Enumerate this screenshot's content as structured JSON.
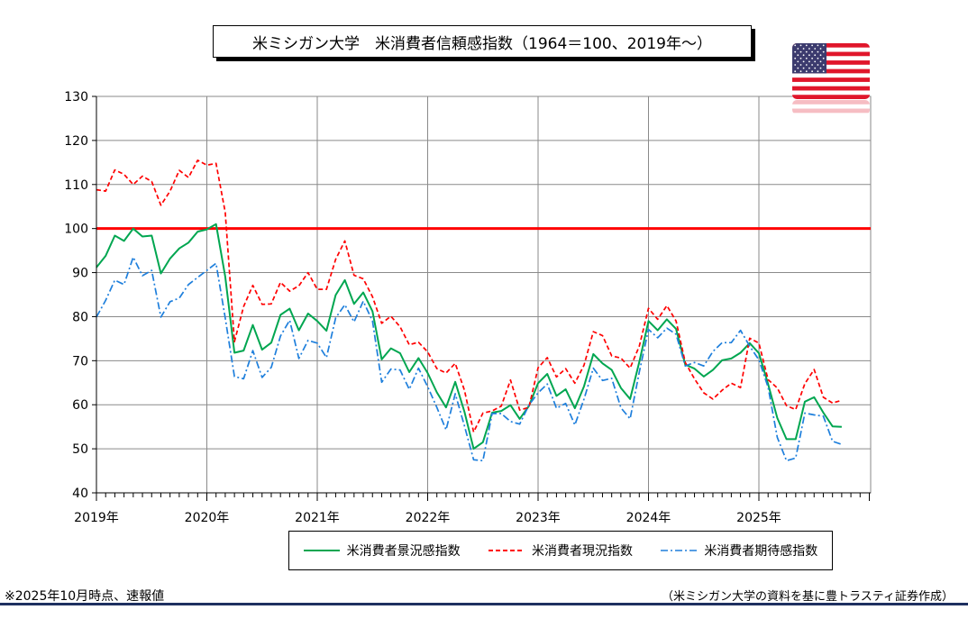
{
  "title": "米ミシガン大学　米消費者信頼感指数（1964＝100、2019年～）",
  "footnote_left": "※2025年10月時点、速報値",
  "footnote_right": "（米ミシガン大学の資料を基に豊トラスティ証券作成）",
  "flag_icon": "us-flag-icon",
  "chart_data": {
    "type": "line",
    "title": "米ミシガン大学　米消費者信頼感指数（1964＝100、2019年～）",
    "xlabel": "",
    "ylabel": "",
    "ylim": [
      40,
      130
    ],
    "yticks": [
      40,
      50,
      60,
      70,
      80,
      90,
      100,
      110,
      120,
      130
    ],
    "xtick_labels": [
      "2019年",
      "2020年",
      "2021年",
      "2022年",
      "2023年",
      "2024年",
      "2025年"
    ],
    "x_start": "2019-01",
    "grid": true,
    "legend_position": "bottom",
    "reference_line": {
      "value": 100,
      "color": "#ff0000"
    },
    "series": [
      {
        "name": "米消費者景況感指数",
        "color": "#00a650",
        "style": "solid",
        "values": [
          91.2,
          93.8,
          98.4,
          97.2,
          100.0,
          98.2,
          98.4,
          89.8,
          93.2,
          95.5,
          96.8,
          99.3,
          99.8,
          101.0,
          89.1,
          71.8,
          72.3,
          78.1,
          72.5,
          74.1,
          80.4,
          81.8,
          76.9,
          80.7,
          79.0,
          76.8,
          84.9,
          88.3,
          82.9,
          85.5,
          81.2,
          70.3,
          72.8,
          71.7,
          67.4,
          70.6,
          67.2,
          62.8,
          59.4,
          65.2,
          58.4,
          50.0,
          51.5,
          58.2,
          58.6,
          59.9,
          56.8,
          59.7,
          64.9,
          67.0,
          62.0,
          63.5,
          59.2,
          64.2,
          71.5,
          69.4,
          67.9,
          63.8,
          61.3,
          69.7,
          79.0,
          76.9,
          79.4,
          77.2,
          69.1,
          68.2,
          66.4,
          67.9,
          70.1,
          70.5,
          71.8,
          74.0,
          71.7,
          64.7,
          57.0,
          52.2,
          52.2,
          60.7,
          61.7,
          58.2,
          55.1,
          55.0
        ]
      },
      {
        "name": "米消費者現況指数",
        "color": "#ff0000",
        "style": "dashed",
        "values": [
          108.8,
          108.5,
          113.3,
          112.3,
          110.0,
          111.9,
          110.7,
          105.3,
          108.5,
          113.2,
          111.6,
          115.5,
          114.4,
          114.8,
          103.7,
          74.3,
          82.3,
          87.1,
          82.8,
          82.9,
          87.8,
          85.8,
          87.0,
          90.0,
          86.2,
          86.2,
          93.0,
          97.2,
          89.4,
          88.6,
          84.5,
          78.5,
          80.1,
          77.7,
          73.6,
          74.2,
          72.0,
          68.2,
          67.2,
          69.4,
          63.3,
          53.8,
          58.1,
          58.6,
          59.7,
          65.6,
          58.8,
          59.4,
          68.4,
          70.7,
          66.3,
          68.2,
          64.9,
          69.0,
          76.6,
          75.7,
          71.1,
          70.6,
          68.3,
          73.3,
          81.9,
          79.4,
          82.5,
          79.0,
          69.6,
          65.9,
          62.7,
          61.3,
          63.3,
          64.9,
          63.9,
          75.1,
          74.0,
          65.7,
          63.8,
          59.8,
          58.9,
          64.8,
          68.0,
          61.7,
          60.4,
          61.0
        ]
      },
      {
        "name": "米消費者期待感指数",
        "color": "#1e7fdc",
        "style": "dashdot",
        "values": [
          79.9,
          83.7,
          88.3,
          87.3,
          93.5,
          89.3,
          90.5,
          79.9,
          83.4,
          84.2,
          87.3,
          88.9,
          90.5,
          92.1,
          79.7,
          66.4,
          65.9,
          72.3,
          66.2,
          68.5,
          75.6,
          79.2,
          70.5,
          74.6,
          74.0,
          70.7,
          79.7,
          82.7,
          78.8,
          83.5,
          79.0,
          65.1,
          68.1,
          67.9,
          63.5,
          68.3,
          64.1,
          59.4,
          54.3,
          62.5,
          55.2,
          47.5,
          47.3,
          58.0,
          58.0,
          56.2,
          55.6,
          59.9,
          62.7,
          64.7,
          59.2,
          60.3,
          55.4,
          61.3,
          68.3,
          65.5,
          66.0,
          59.3,
          56.8,
          67.4,
          77.1,
          75.2,
          77.4,
          76.0,
          68.8,
          69.6,
          68.8,
          72.1,
          74.1,
          74.1,
          76.9,
          73.3,
          70.2,
          64.0,
          52.6,
          47.3,
          47.9,
          58.1,
          57.7,
          57.4,
          51.7,
          51.0
        ]
      }
    ]
  }
}
